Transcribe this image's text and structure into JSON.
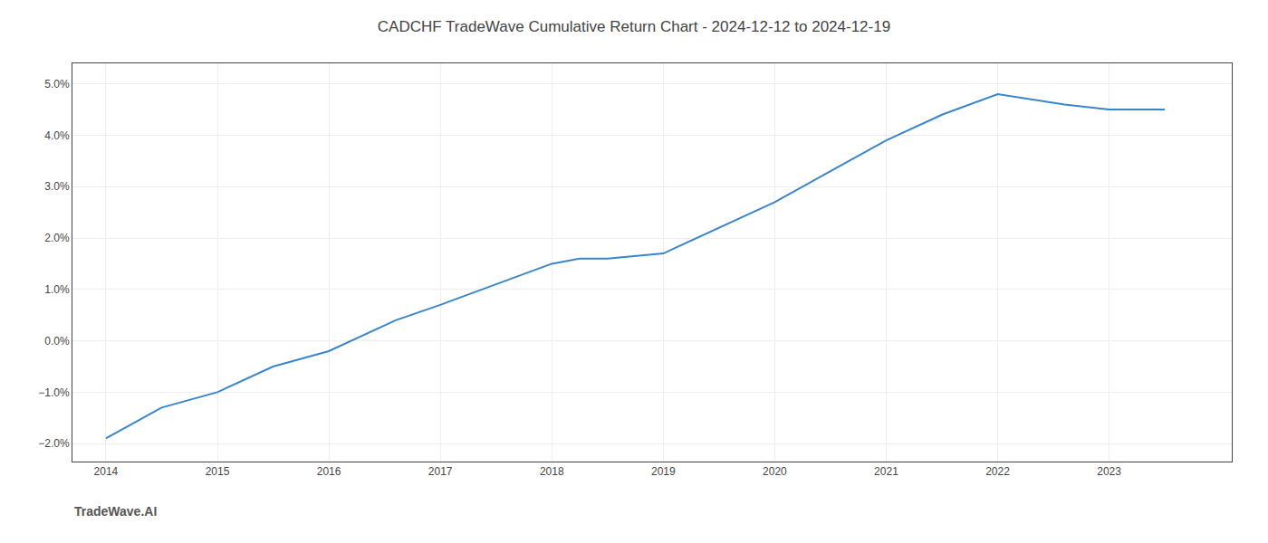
{
  "chart_data": {
    "type": "line",
    "title": "CADCHF TradeWave Cumulative Return Chart - 2024-12-12 to 2024-12-19",
    "annotations": [
      "TradeWave.AI"
    ],
    "x": [
      2014.0,
      2014.5,
      2015.0,
      2015.5,
      2016.0,
      2016.3,
      2016.6,
      2017.0,
      2017.5,
      2018.0,
      2018.25,
      2018.5,
      2019.0,
      2019.5,
      2020.0,
      2020.5,
      2021.0,
      2021.5,
      2022.0,
      2022.3,
      2022.6,
      2023.0,
      2023.5
    ],
    "values": [
      -0.019,
      -0.013,
      -0.01,
      -0.005,
      -0.002,
      0.001,
      0.004,
      0.007,
      0.011,
      0.015,
      0.016,
      0.016,
      0.017,
      0.022,
      0.027,
      0.033,
      0.039,
      0.044,
      0.048,
      0.047,
      0.046,
      0.045,
      0.045
    ],
    "color": "#3a86c8",
    "xlim": [
      2013.7,
      2024.1
    ],
    "xticks": [
      2014,
      2015,
      2016,
      2017,
      2018,
      2019,
      2020,
      2021,
      2022,
      2023
    ],
    "ylim": [
      -0.0235,
      0.054
    ],
    "yticks": [
      {
        "value": -0.02,
        "label": "−2.0%"
      },
      {
        "value": -0.01,
        "label": "−1.0%"
      },
      {
        "value": 0.0,
        "label": "0.0%"
      },
      {
        "value": 0.01,
        "label": "1.0%"
      },
      {
        "value": 0.02,
        "label": "2.0%"
      },
      {
        "value": 0.03,
        "label": "3.0%"
      },
      {
        "value": 0.04,
        "label": "4.0%"
      },
      {
        "value": 0.05,
        "label": "5.0%"
      }
    ],
    "grid": true
  }
}
